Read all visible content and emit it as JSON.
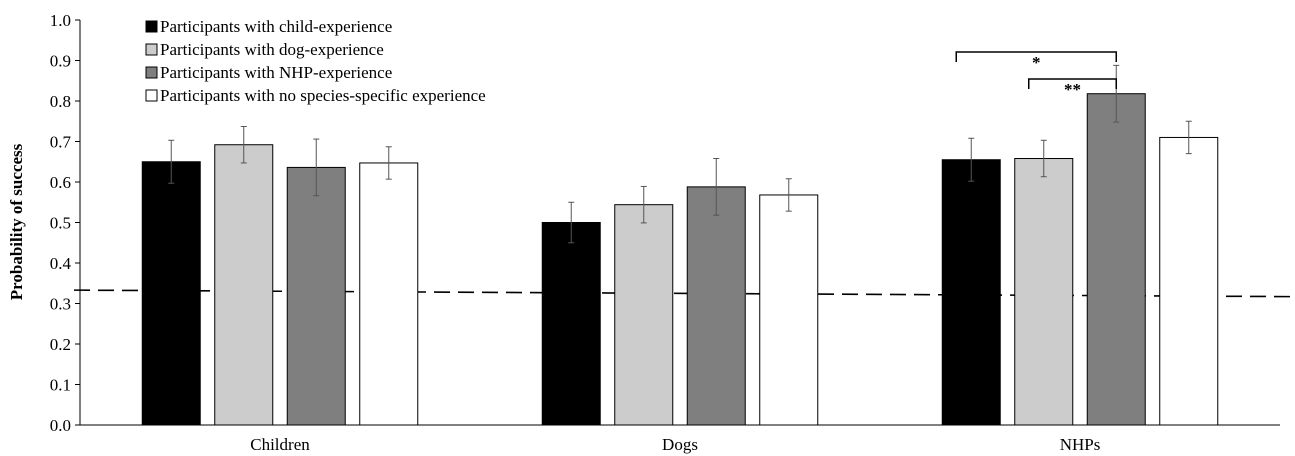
{
  "chart_data": {
    "type": "bar",
    "title": "",
    "xlabel": "",
    "ylabel": "Probability of success",
    "ylim": [
      0,
      1.0
    ],
    "yticks": [
      "0.0",
      "0.1",
      "0.2",
      "0.3",
      "0.4",
      "0.5",
      "0.6",
      "0.7",
      "0.8",
      "0.9",
      "1.0"
    ],
    "categories": [
      "Children",
      "Dogs",
      "NHPs"
    ],
    "series": [
      {
        "name": "Participants with child-experience",
        "color": "#000000",
        "values": [
          0.65,
          0.5,
          0.655
        ],
        "errors": [
          0.053,
          0.05,
          0.053
        ]
      },
      {
        "name": "Participants with dog-experience",
        "color": "#cccccc",
        "values": [
          0.692,
          0.544,
          0.658
        ],
        "errors": [
          0.045,
          0.045,
          0.045
        ]
      },
      {
        "name": "Participants with NHP-experience",
        "color": "#7f7f7f",
        "values": [
          0.636,
          0.588,
          0.818
        ],
        "errors": [
          0.07,
          0.07,
          0.07
        ]
      },
      {
        "name": "Participants with no species-specific experience",
        "color": "#ffffff",
        "values": [
          0.647,
          0.568,
          0.71
        ],
        "errors": [
          0.04,
          0.04,
          0.04
        ]
      }
    ],
    "chance_line": {
      "start": 0.333,
      "end": 0.317,
      "style": "dashed"
    },
    "significance": [
      {
        "category": "NHPs",
        "from_series": 0,
        "to_series": 2,
        "label": "*"
      },
      {
        "category": "NHPs",
        "from_series": 1,
        "to_series": 2,
        "label": "**"
      }
    ],
    "legend_position": "top-left",
    "grid": false
  }
}
